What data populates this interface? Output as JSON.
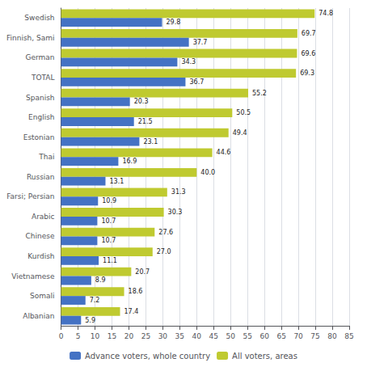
{
  "chart_data": {
    "type": "bar",
    "orientation": "horizontal",
    "categories": [
      "Swedish",
      "Finnish, Sami",
      "German",
      "TOTAL",
      "Spanish",
      "English",
      "Estonian",
      "Thai",
      "Russian",
      "Farsi; Persian",
      "Arabic",
      "Chinese",
      "Kurdish",
      "Vietnamese",
      "Somali",
      "Albanian"
    ],
    "series": [
      {
        "name": "Advance voters, whole country",
        "color": "#4472c4",
        "values": [
          29.8,
          37.7,
          34.3,
          36.7,
          20.3,
          21.5,
          23.1,
          16.9,
          13.1,
          10.9,
          10.7,
          10.7,
          11.1,
          8.9,
          7.2,
          5.9
        ],
        "value_labels": [
          "29.8",
          "37.7",
          "34.3",
          "36.7",
          "20.3",
          "21.5",
          "23.1",
          "16.9",
          "13.1",
          "10.9",
          "10.7",
          "10.7",
          "11.1",
          "8.9",
          "7.2",
          "5.9"
        ]
      },
      {
        "name": "All voters, areas",
        "color": "#bfca30",
        "values": [
          74.8,
          69.7,
          69.6,
          69.3,
          55.2,
          50.5,
          49.4,
          44.6,
          40.0,
          31.3,
          30.3,
          27.6,
          27.0,
          20.7,
          18.6,
          17.4
        ],
        "value_labels": [
          "74.8",
          "69.7",
          "69.6",
          "69.3",
          "55.2",
          "50.5",
          "49.4",
          "44.6",
          "40.0",
          "31.3",
          "30.3",
          "27.6",
          "27.0",
          "20.7",
          "18.6",
          "17.4"
        ]
      }
    ],
    "xlim": [
      0,
      85
    ],
    "xticks": [
      0,
      5,
      10,
      15,
      20,
      25,
      30,
      35,
      40,
      45,
      50,
      55,
      60,
      65,
      70,
      75,
      80,
      85
    ],
    "grid": true,
    "legend": "bottom",
    "data_labels": true
  }
}
